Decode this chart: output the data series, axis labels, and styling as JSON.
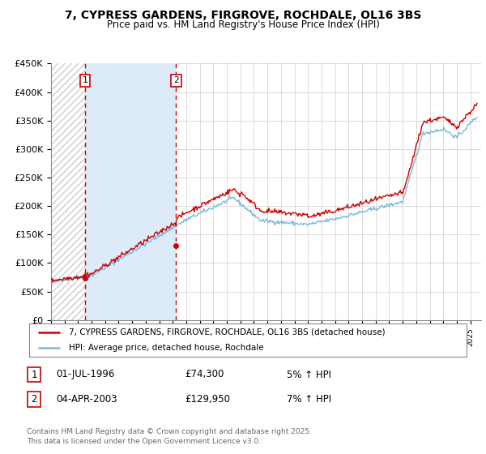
{
  "title1": "7, CYPRESS GARDENS, FIRGROVE, ROCHDALE, OL16 3BS",
  "title2": "Price paid vs. HM Land Registry's House Price Index (HPI)",
  "ylabel_ticks": [
    "£0",
    "£50K",
    "£100K",
    "£150K",
    "£200K",
    "£250K",
    "£300K",
    "£350K",
    "£400K",
    "£450K"
  ],
  "ytick_values": [
    0,
    50000,
    100000,
    150000,
    200000,
    250000,
    300000,
    350000,
    400000,
    450000
  ],
  "year_start": 1994,
  "year_end": 2025,
  "hpi_color": "#7db8d8",
  "price_color": "#cc0000",
  "shaded_region_color": "#ddeaf7",
  "background_color": "#ffffff",
  "grid_color": "#cccccc",
  "purchase1_date": 1996.5,
  "purchase1_price": 74300,
  "purchase1_label": "1",
  "purchase2_date": 2003.25,
  "purchase2_price": 129950,
  "purchase2_label": "2",
  "legend_line1": "7, CYPRESS GARDENS, FIRGROVE, ROCHDALE, OL16 3BS (detached house)",
  "legend_line2": "HPI: Average price, detached house, Rochdale",
  "table_row1": [
    "1",
    "01-JUL-1996",
    "£74,300",
    "5% ↑ HPI"
  ],
  "table_row2": [
    "2",
    "04-APR-2003",
    "£129,950",
    "7% ↑ HPI"
  ],
  "footnote": "Contains HM Land Registry data © Crown copyright and database right 2025.\nThis data is licensed under the Open Government Licence v3.0.",
  "dashed_vline_color": "#cc0000",
  "marker_color": "#cc0000",
  "hatch_color": "#cccccc"
}
